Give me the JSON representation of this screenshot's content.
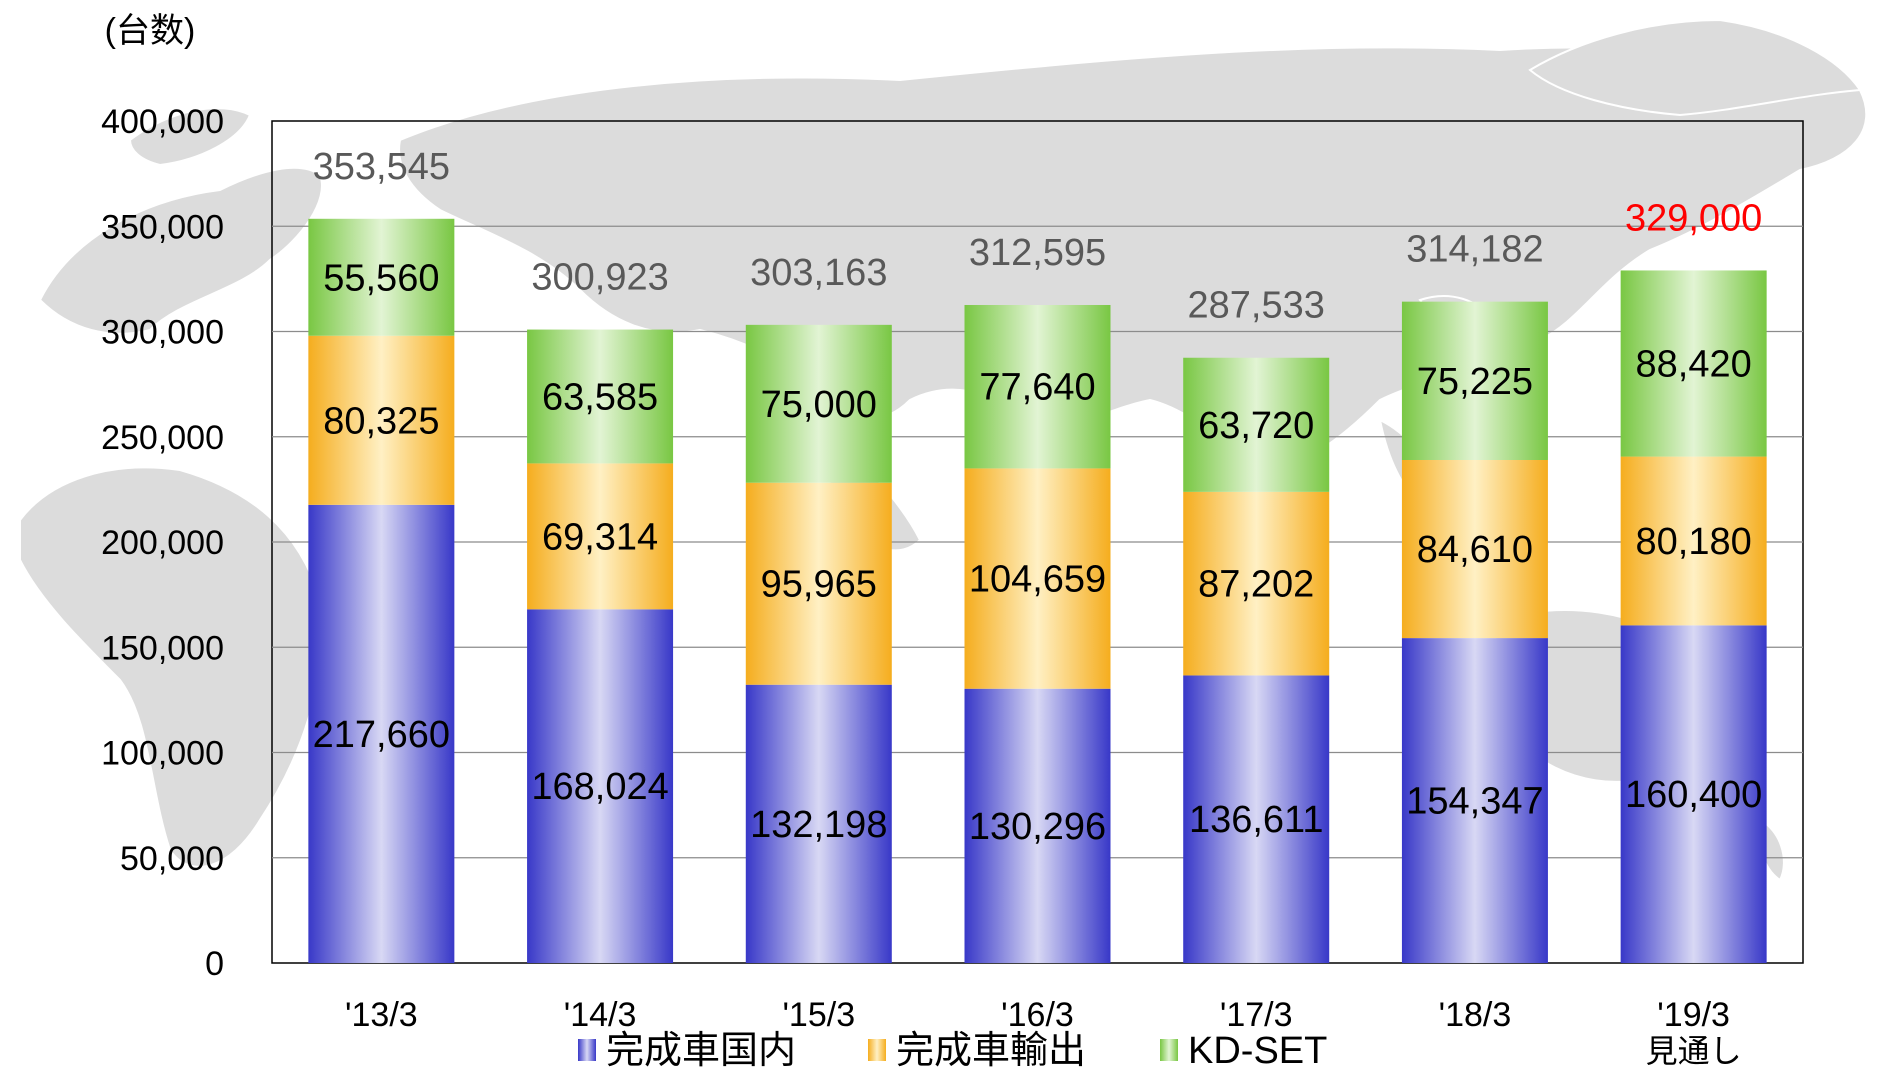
{
  "chart_data": {
    "type": "bar",
    "stacked": true,
    "unit_label": "(台数)",
    "title": "",
    "xlabel": "",
    "ylabel": "",
    "ylim": [
      0,
      400000
    ],
    "yticks": [
      0,
      50000,
      100000,
      150000,
      200000,
      250000,
      300000,
      350000,
      400000
    ],
    "ytick_labels": [
      "0",
      "50,000",
      "100,000",
      "150,000",
      "200,000",
      "250,000",
      "300,000",
      "350,000",
      "400,000"
    ],
    "grid": true,
    "legend_position": "bottom",
    "categories": [
      "'13/3",
      "'14/3",
      "'15/3",
      "'16/3",
      "'17/3",
      "'18/3",
      "'19/3"
    ],
    "category_notes": [
      "",
      "",
      "",
      "",
      "",
      "",
      "見通し"
    ],
    "series": [
      {
        "name": "完成車国内",
        "color": "#3b3bcc",
        "values": [
          217660,
          168024,
          132198,
          130296,
          136611,
          154347,
          160400
        ],
        "labels": [
          "217,660",
          "168,024",
          "132,198",
          "130,296",
          "136,611",
          "154,347",
          "160,400"
        ]
      },
      {
        "name": "完成車輸出",
        "color": "#f5b324",
        "values": [
          80325,
          69314,
          95965,
          104659,
          87202,
          84610,
          80180
        ],
        "labels": [
          "80,325",
          "69,314",
          "95,965",
          "104,659",
          "87,202",
          "84,610",
          "80,180"
        ]
      },
      {
        "name": "KD-SET",
        "color": "#7ac943",
        "values": [
          55560,
          63585,
          75000,
          77640,
          63720,
          75225,
          88420
        ],
        "labels": [
          "55,560",
          "63,585",
          "75,000",
          "77,640",
          "63,720",
          "75,225",
          "88,420"
        ]
      }
    ],
    "totals": [
      353545,
      300923,
      303163,
      312595,
      287533,
      314182,
      329000
    ],
    "total_labels": [
      "353,545",
      "300,923",
      "303,163",
      "312,595",
      "287,533",
      "314,182",
      "329,000"
    ],
    "total_colors": [
      "#595959",
      "#595959",
      "#595959",
      "#595959",
      "#595959",
      "#595959",
      "#ff0000"
    ]
  }
}
